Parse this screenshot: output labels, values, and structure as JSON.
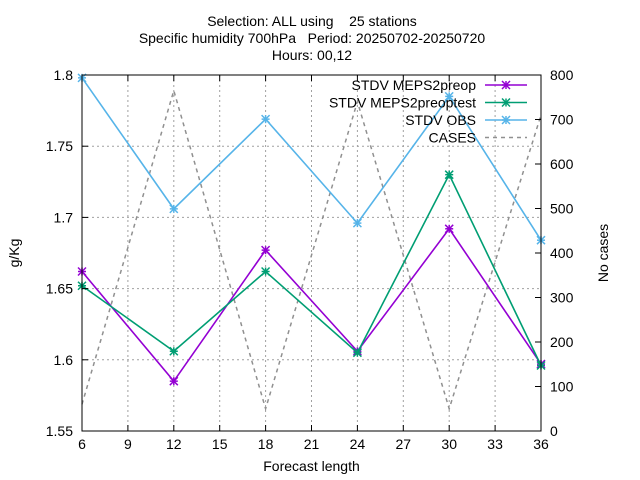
{
  "chart_data": {
    "type": "line",
    "title_lines": [
      "Selection: ALL using    25 stations",
      "Specific humidity 700hPa   Period: 20250702-20250720",
      "Hours: 00,12"
    ],
    "xlabel": "Forecast length",
    "ylabel": "g/Kg",
    "y2label": "No cases",
    "xlim": [
      6,
      36
    ],
    "ylim": [
      1.55,
      1.8
    ],
    "y2lim": [
      0,
      800
    ],
    "xticks": [
      6,
      9,
      12,
      15,
      18,
      21,
      24,
      27,
      30,
      33,
      36
    ],
    "yticks": [
      1.55,
      1.6,
      1.65,
      1.7,
      1.75,
      1.8
    ],
    "y2ticks": [
      0,
      100,
      200,
      300,
      400,
      500,
      600,
      700,
      800
    ],
    "grid": true,
    "legend_position": "top-right",
    "x": [
      6,
      12,
      18,
      24,
      30,
      36
    ],
    "series": [
      {
        "name": "STDV MEPS2preop",
        "color": "#9400d3",
        "axis": "y",
        "marker": "x-star",
        "dash": false,
        "values": [
          1.662,
          1.585,
          1.677,
          1.606,
          1.692,
          1.597
        ]
      },
      {
        "name": "STDV MEPS2preoptest",
        "color": "#009e73",
        "axis": "y",
        "marker": "x-star",
        "dash": false,
        "values": [
          1.652,
          1.606,
          1.662,
          1.605,
          1.73,
          1.596
        ]
      },
      {
        "name": "STDV OBS",
        "color": "#56b4e9",
        "axis": "y",
        "marker": "x-star",
        "dash": false,
        "values": [
          1.798,
          1.706,
          1.769,
          1.696,
          1.785,
          1.684
        ]
      },
      {
        "name": "CASES",
        "color": "#909090",
        "axis": "y2",
        "marker": "none",
        "dash": true,
        "values": [
          60,
          765,
          50,
          740,
          50,
          710
        ]
      }
    ]
  }
}
